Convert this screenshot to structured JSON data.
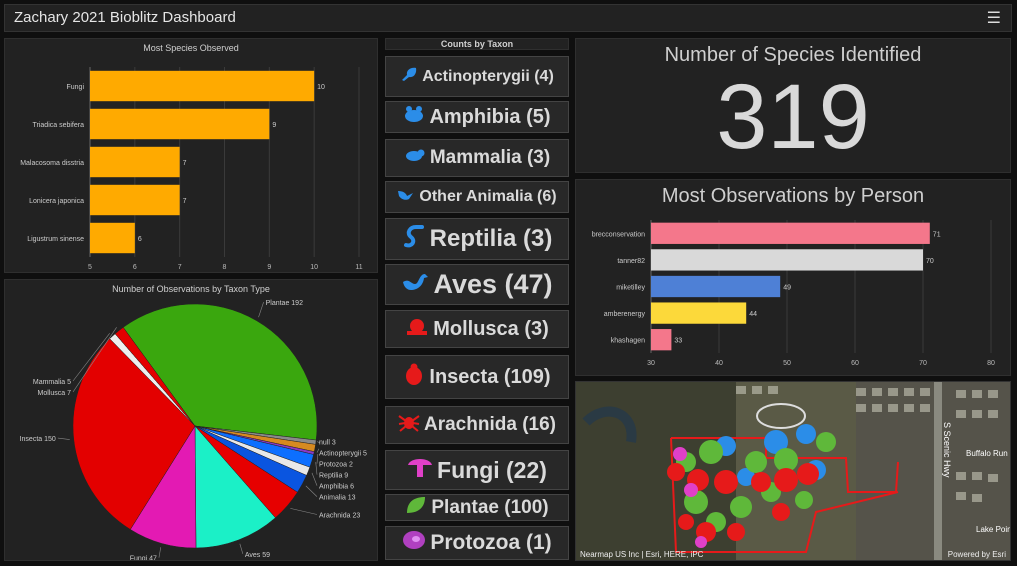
{
  "header": {
    "title": "Zachary 2021 Bioblitz Dashboard",
    "menu_icon": "hamburger-menu-icon"
  },
  "species_chart": {
    "title": "Most Species Observed",
    "categories": [
      "Fungi",
      "Triadica sebifera",
      "Malacosoma disstria",
      "Lonicera japonica",
      "Ligustrum sinense"
    ],
    "values": [
      10,
      9,
      7,
      7,
      6
    ],
    "ticks": [
      "5",
      "6",
      "7",
      "8",
      "9",
      "10",
      "11"
    ],
    "color": "#ffaa00"
  },
  "taxon_list": {
    "title": "Counts by Taxon",
    "items": [
      {
        "label": "Actinopterygii (4)",
        "icon": "fish-icon"
      },
      {
        "label": "Amphibia (5)",
        "icon": "frog-icon"
      },
      {
        "label": "Mammalia (3)",
        "icon": "mammal-icon"
      },
      {
        "label": "Other Animalia (6)",
        "icon": "bird-icon"
      },
      {
        "label": "Reptilia (3)",
        "icon": "snake-icon"
      },
      {
        "label": "Aves (47)",
        "icon": "bird-icon"
      },
      {
        "label": "Mollusca (3)",
        "icon": "snail-icon"
      },
      {
        "label": "Insecta (109)",
        "icon": "beetle-icon"
      },
      {
        "label": "Arachnida (16)",
        "icon": "spider-icon"
      },
      {
        "label": "Fungi (22)",
        "icon": "mushroom-icon"
      },
      {
        "label": "Plantae (100)",
        "icon": "leaf-icon"
      },
      {
        "label": "Protozoa (1)",
        "icon": "protozoa-icon"
      }
    ]
  },
  "species_count": {
    "title": "Number of Species Identified",
    "value": "319"
  },
  "person_chart": {
    "title": "Most Observations by Person",
    "categories": [
      "brecconservation",
      "tanner82",
      "miketilley",
      "amberenergy",
      "khashagen"
    ],
    "values": [
      71,
      70,
      49,
      44,
      33
    ],
    "ticks": [
      "30",
      "40",
      "50",
      "60",
      "70",
      "80"
    ],
    "colors": [
      "#f4778b",
      "#d9d9d9",
      "#4e80d6",
      "#fcd93a",
      "#f4778b"
    ]
  },
  "chart_data": [
    {
      "type": "bar",
      "title": "Most Species Observed",
      "categories": [
        "Fungi",
        "Triadica sebifera",
        "Malacosoma disstria",
        "Lonicera japonica",
        "Ligustrum sinense"
      ],
      "values": [
        10,
        9,
        7,
        7,
        6
      ],
      "xlim": [
        5,
        11
      ]
    },
    {
      "type": "pie",
      "title": "Number of Observations by Taxon Type",
      "categories": [
        "Plantae",
        "null",
        "Actinopterygii",
        "Protozoa",
        "Reptilia",
        "Amphibia",
        "Animalia",
        "Arachnida",
        "Aves",
        "Fungi",
        "Insecta",
        "Mammalia",
        "Mollusca"
      ],
      "values": [
        192,
        3,
        5,
        2,
        9,
        6,
        13,
        23,
        59,
        47,
        150,
        5,
        7
      ],
      "labels": [
        "Plantae 192",
        "null 3",
        "Actinopterygii 5",
        "Protozoa 2",
        "Reptilia 9",
        "Amphibia 6",
        "Animalia 13",
        "Arachnida 23",
        "Aves 59",
        "Fungi 47",
        "Insecta 150",
        "Mammalia 5",
        "Mollusca 7"
      ],
      "colors": [
        "#3aa70e",
        "#8a8a8a",
        "#d68a20",
        "#8b3ac4",
        "#0d6fff",
        "#e8e8e8",
        "#0a55e0",
        "#e60000",
        "#1bf0c7",
        "#e31ab3",
        "#e30000",
        "#eeeeee",
        "#e30000"
      ]
    },
    {
      "type": "bar",
      "title": "Most Observations by Person",
      "categories": [
        "brecconservation",
        "tanner82",
        "miketilley",
        "amberenergy",
        "khashagen"
      ],
      "values": [
        71,
        70,
        49,
        44,
        33
      ],
      "xlim": [
        30,
        80
      ]
    }
  ],
  "map": {
    "attribution_left": "Nearmap US Inc | Esri, HERE, iPC",
    "attribution_right": "Powered by Esri",
    "road_label": "S Scenic Hwy",
    "road_label_2": "Buffalo Run",
    "road_label_3": "Lake Pointe"
  }
}
